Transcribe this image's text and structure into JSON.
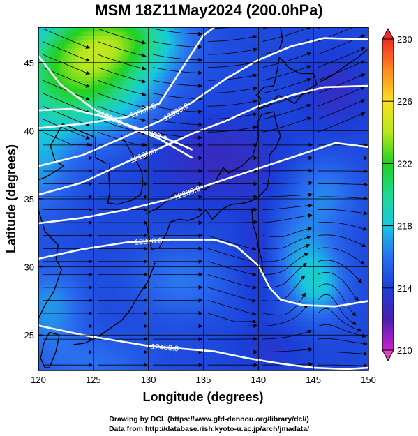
{
  "figure": {
    "title": "MSM 18Z11May2024 (200.0hPa)",
    "xlabel": "Longitude (degrees)",
    "ylabel": "Latitude  (degrees)",
    "credit_line1": "Drawing by DCL (https://www.gfd-dennou.org/library/dcl/)",
    "credit_line2": "Data from http://database.rish.kyoto-u.ac.jp/arch/jmadata/"
  },
  "chart_data": {
    "type": "heatmap",
    "title": "MSM 18Z11May2024 (200.0hPa)",
    "xlabel": "Longitude (degrees)",
    "ylabel": "Latitude  (degrees)",
    "xlim": [
      120,
      150
    ],
    "ylim": [
      22.4,
      47.6
    ],
    "xticks": [
      120,
      125,
      130,
      135,
      140,
      145,
      150
    ],
    "yticks": [
      25,
      30,
      35,
      40,
      45
    ],
    "colorbar": {
      "min": 210,
      "max": 230,
      "ticks": [
        210,
        214,
        218,
        222,
        226,
        230
      ],
      "extend": "both"
    },
    "colors": {
      "t210": "#cc22cc",
      "t212": "#4a1fb0",
      "t214": "#1b3fd8",
      "t216": "#2a6ff0",
      "t218": "#18c8e0",
      "t220": "#20d890",
      "t222": "#22d020",
      "t224": "#b4e81c",
      "t226": "#ffe020",
      "t228": "#ff8a20",
      "t230": "#f02a20"
    },
    "contours": [
      {
        "label": "11700.0",
        "points": [
          [
            120,
            45.5
          ],
          [
            122,
            43.4
          ],
          [
            125,
            41.6
          ],
          [
            128,
            40.4
          ],
          [
            131,
            39.4
          ],
          [
            134,
            38.0
          ]
        ]
      },
      {
        "label": "11800.0",
        "points": [
          [
            120,
            41.5
          ],
          [
            123,
            41.6
          ],
          [
            126,
            41.0
          ],
          [
            129,
            40.2
          ],
          [
            132,
            39.3
          ],
          [
            134,
            38.6
          ]
        ]
      },
      {
        "label": "11900.0",
        "points": [
          [
            120,
            40.2
          ],
          [
            124,
            40.5
          ],
          [
            128,
            41.0
          ],
          [
            131,
            42.0
          ],
          [
            133,
            44.5
          ],
          [
            135,
            47.0
          ],
          [
            136,
            47.6
          ]
        ]
      },
      {
        "label": "12000.0",
        "points": [
          [
            120,
            37.4
          ],
          [
            124,
            38.2
          ],
          [
            128,
            39.6
          ],
          [
            131,
            40.7
          ],
          [
            134,
            42.1
          ],
          [
            137,
            43.8
          ],
          [
            140,
            45.2
          ],
          [
            143,
            46.2
          ],
          [
            146,
            46.8
          ],
          [
            150,
            46.7
          ]
        ]
      },
      {
        "label": "12100.0",
        "points": [
          [
            120,
            35.3
          ],
          [
            124,
            36.2
          ],
          [
            128,
            37.7
          ],
          [
            131,
            38.7
          ],
          [
            134,
            39.8
          ],
          [
            137,
            40.7
          ],
          [
            140,
            41.8
          ],
          [
            143,
            42.6
          ],
          [
            146,
            43.2
          ],
          [
            150,
            43.3
          ]
        ]
      },
      {
        "label": "12200.0",
        "points": [
          [
            120,
            33.2
          ],
          [
            124,
            33.6
          ],
          [
            128,
            34.2
          ],
          [
            132,
            35.0
          ],
          [
            135,
            35.9
          ],
          [
            138,
            36.7
          ],
          [
            141,
            37.5
          ],
          [
            144,
            38.3
          ],
          [
            147,
            39.1
          ],
          [
            150,
            38.8
          ]
        ]
      },
      {
        "label": "12300.0",
        "points": [
          [
            120,
            30.6
          ],
          [
            124,
            31.3
          ],
          [
            128,
            31.8
          ],
          [
            132,
            32.0
          ],
          [
            136,
            32.0
          ],
          [
            138,
            31.5
          ],
          [
            140,
            30.1
          ],
          [
            141,
            28.5
          ],
          [
            142,
            27.6
          ],
          [
            144,
            27.2
          ],
          [
            147,
            27.1
          ],
          [
            150,
            27.5
          ]
        ]
      },
      {
        "label": "12400.0",
        "points": [
          [
            120,
            25.7
          ],
          [
            124,
            25.0
          ],
          [
            127,
            24.6
          ],
          [
            130,
            24.2
          ],
          [
            133,
            24.0
          ],
          [
            136,
            23.8
          ],
          [
            139,
            23.3
          ],
          [
            142,
            22.9
          ],
          [
            145,
            22.6
          ],
          [
            148,
            22.5
          ],
          [
            150,
            22.6
          ]
        ]
      }
    ],
    "coastlines": [
      {
        "name": "Korea",
        "points": [
          [
            126.5,
            37.7
          ],
          [
            126.4,
            36.8
          ],
          [
            126.5,
            35.5
          ],
          [
            126.3,
            34.7
          ],
          [
            127.2,
            34.6
          ],
          [
            128.5,
            34.9
          ],
          [
            129.3,
            35.3
          ],
          [
            129.5,
            36.1
          ],
          [
            129.4,
            37.0
          ],
          [
            128.6,
            38.2
          ],
          [
            128.3,
            38.6
          ],
          [
            127.5,
            39.7
          ]
        ]
      },
      {
        "name": "Kyushu-Shikoku-Honshu south",
        "points": [
          [
            129.8,
            33.2
          ],
          [
            130.3,
            31.3
          ],
          [
            131.0,
            31.4
          ],
          [
            131.7,
            32.6
          ],
          [
            132.0,
            33.3
          ],
          [
            132.8,
            33.5
          ],
          [
            133.6,
            33.4
          ],
          [
            134.6,
            33.7
          ],
          [
            135.2,
            34.2
          ],
          [
            135.8,
            33.5
          ],
          [
            136.8,
            34.3
          ],
          [
            137.6,
            34.6
          ],
          [
            138.8,
            34.7
          ],
          [
            139.8,
            35.0
          ],
          [
            140.2,
            35.3
          ],
          [
            140.8,
            35.8
          ],
          [
            141.0,
            36.7
          ],
          [
            141.0,
            38.2
          ],
          [
            141.6,
            38.8
          ],
          [
            142.0,
            39.6
          ],
          [
            141.6,
            40.6
          ],
          [
            141.4,
            41.4
          ]
        ]
      },
      {
        "name": "Honshu north (Sea of Japan)",
        "points": [
          [
            129.8,
            33.9
          ],
          [
            131.0,
            34.4
          ],
          [
            132.4,
            35.4
          ],
          [
            133.6,
            35.5
          ],
          [
            135.2,
            35.7
          ],
          [
            136.1,
            36.3
          ],
          [
            136.8,
            37.3
          ],
          [
            137.3,
            36.9
          ],
          [
            138.5,
            37.4
          ],
          [
            139.5,
            38.2
          ],
          [
            140.0,
            39.5
          ],
          [
            139.9,
            40.6
          ],
          [
            140.3,
            41.2
          ],
          [
            141.4,
            41.4
          ]
        ]
      },
      {
        "name": "Hokkaido",
        "points": [
          [
            140.0,
            41.6
          ],
          [
            140.2,
            42.4
          ],
          [
            139.8,
            42.6
          ],
          [
            140.5,
            43.2
          ],
          [
            141.4,
            43.3
          ],
          [
            141.7,
            44.4
          ],
          [
            141.9,
            45.4
          ],
          [
            142.8,
            44.6
          ],
          [
            143.8,
            44.2
          ],
          [
            145.0,
            44.2
          ],
          [
            145.3,
            43.4
          ],
          [
            144.2,
            42.9
          ],
          [
            143.3,
            42.0
          ],
          [
            141.8,
            42.6
          ],
          [
            140.9,
            41.8
          ],
          [
            140.0,
            41.6
          ]
        ]
      },
      {
        "name": "Sakhalin",
        "points": [
          [
            141.9,
            46.0
          ],
          [
            142.2,
            46.7
          ],
          [
            142.0,
            47.6
          ]
        ]
      },
      {
        "name": "Kuril",
        "points": [
          [
            145.6,
            43.6
          ],
          [
            146.6,
            44.0
          ],
          [
            147.8,
            44.7
          ],
          [
            148.9,
            45.3
          ],
          [
            150.0,
            46.0
          ]
        ]
      },
      {
        "name": "China coast",
        "points": [
          [
            120,
            36.4
          ],
          [
            120.7,
            36.6
          ],
          [
            122.3,
            37.4
          ],
          [
            121.5,
            37.8
          ],
          [
            121.1,
            38.9
          ],
          [
            122.2,
            40.5
          ],
          [
            124.0,
            39.9
          ],
          [
            125.2,
            39.5
          ],
          [
            125.2,
            38.0
          ],
          [
            126.2,
            37.6
          ]
        ]
      },
      {
        "name": "China coast south",
        "points": [
          [
            120,
            34.2
          ],
          [
            120.6,
            32.6
          ],
          [
            121.8,
            31.6
          ],
          [
            121.6,
            30.6
          ],
          [
            122.1,
            29.8
          ],
          [
            121.4,
            28.2
          ],
          [
            120.6,
            27.2
          ],
          [
            120,
            26.2
          ]
        ]
      },
      {
        "name": "Taiwan",
        "points": [
          [
            121.0,
            25.2
          ],
          [
            121.9,
            25.0
          ],
          [
            121.6,
            23.8
          ],
          [
            121.0,
            22.6
          ],
          [
            120.6,
            22.6
          ],
          [
            120.2,
            23.3
          ],
          [
            120.5,
            24.4
          ],
          [
            121.0,
            25.2
          ]
        ]
      },
      {
        "name": "Ryukyu",
        "points": [
          [
            123.2,
            24.3
          ],
          [
            124.2,
            24.4
          ],
          [
            125.3,
            24.8
          ],
          [
            127.6,
            26.1
          ],
          [
            128.3,
            26.8
          ],
          [
            129.4,
            28.3
          ],
          [
            130.0,
            29.0
          ],
          [
            130.6,
            30.3
          ]
        ]
      },
      {
        "name": "Izu islands",
        "points": [
          [
            139.4,
            34.3
          ],
          [
            139.5,
            33.1
          ],
          [
            139.8,
            32.4
          ],
          [
            140.0,
            31.4
          ],
          [
            140.3,
            30.5
          ],
          [
            140.4,
            29.6
          ]
        ]
      }
    ]
  }
}
